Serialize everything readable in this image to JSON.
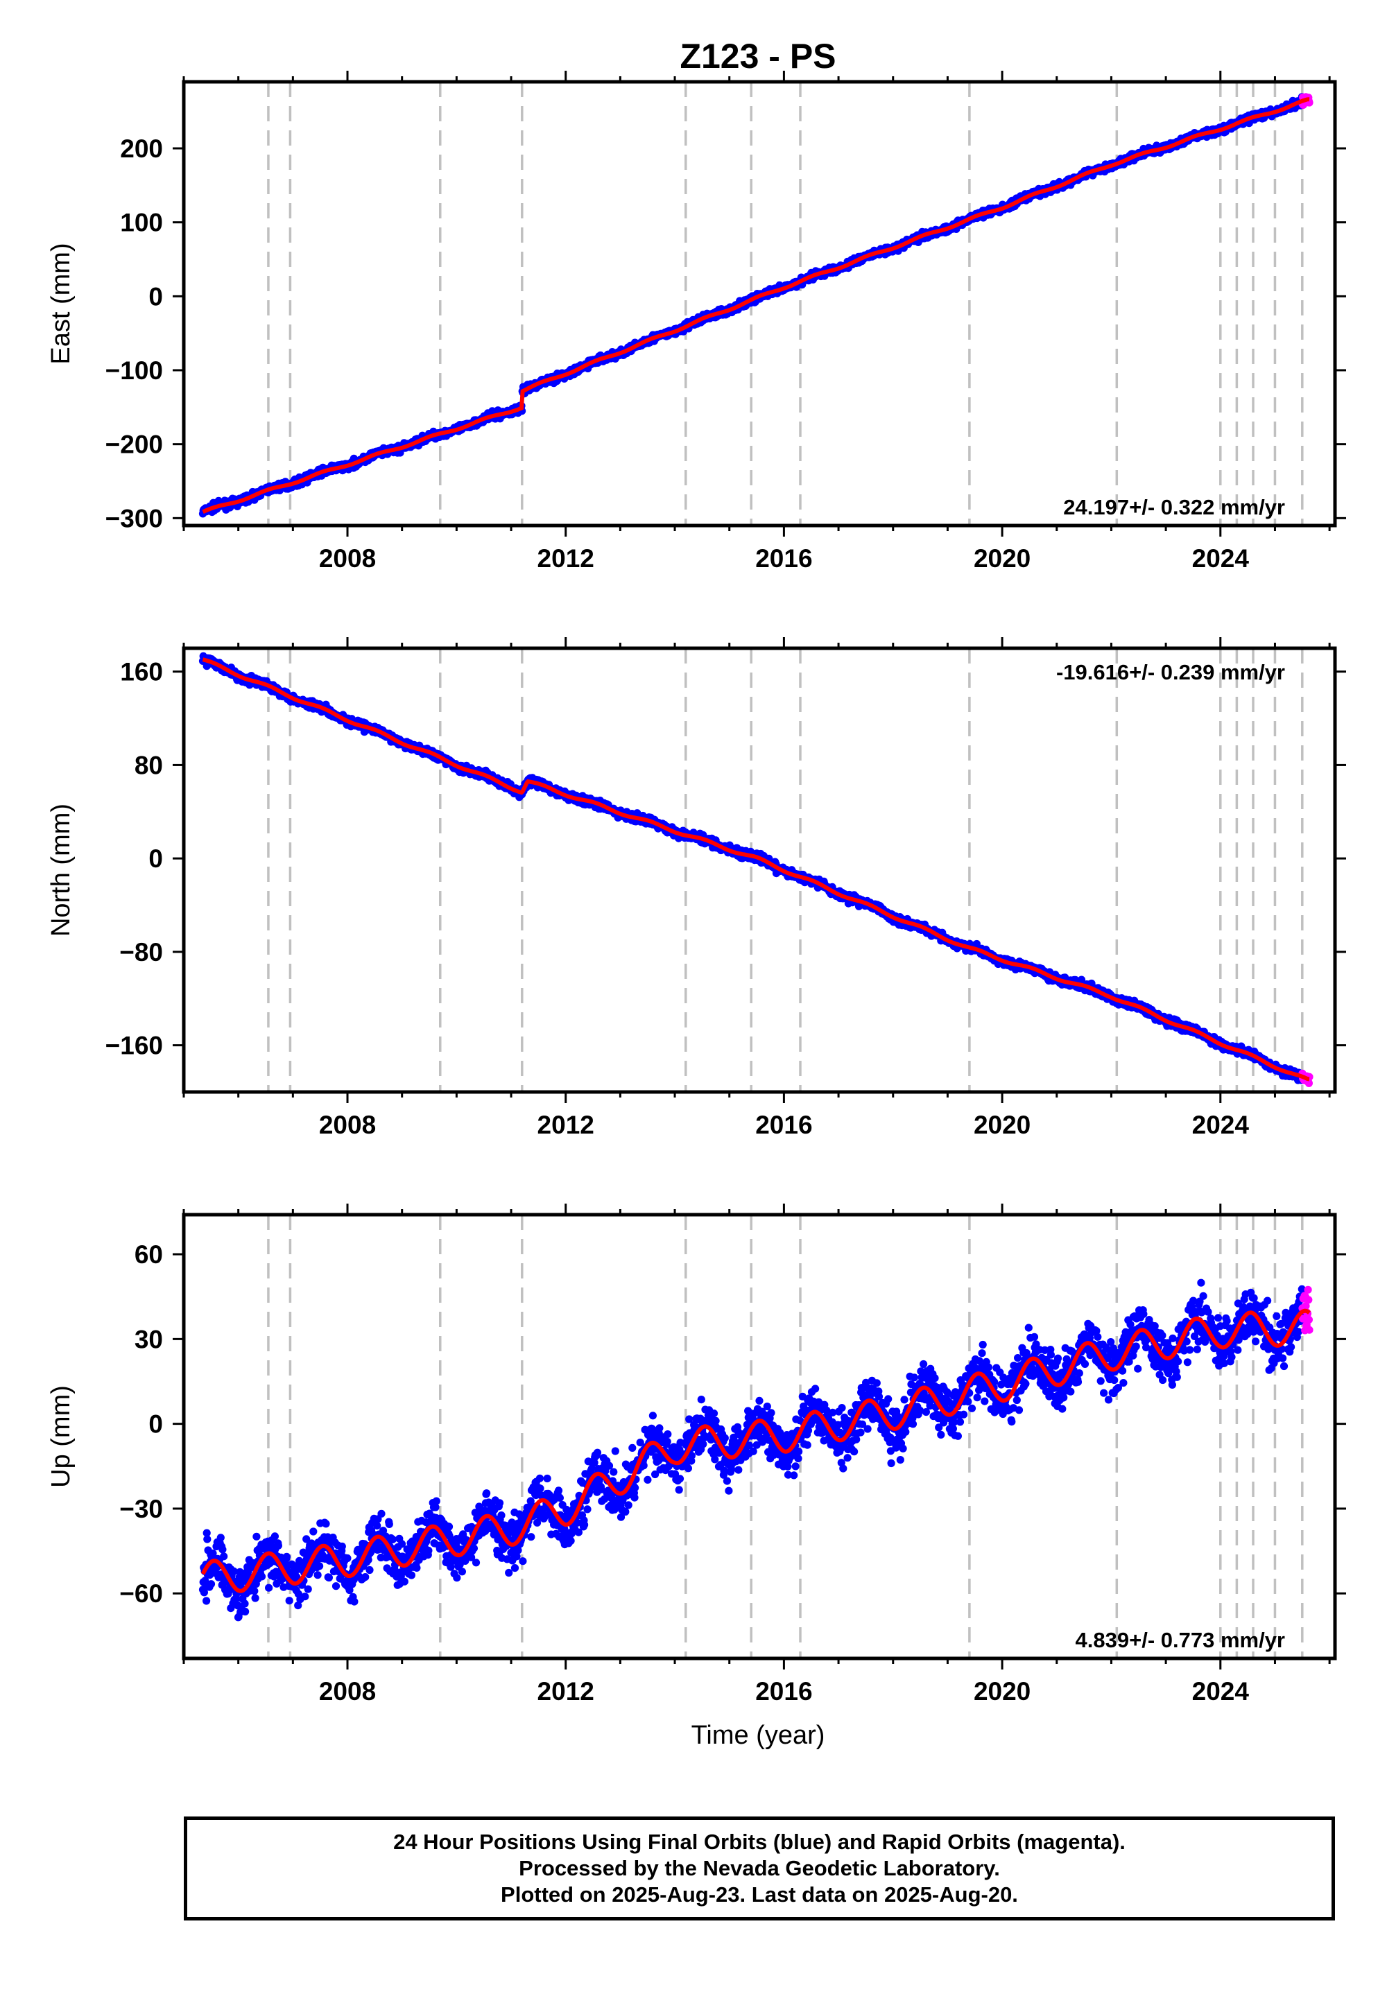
{
  "chart_data": {
    "title": "Z123 - PS",
    "type": "scatter",
    "xlabel": "Time (year)",
    "xlim": [
      2005.0,
      2026.1
    ],
    "x_ticks": [
      2008,
      2012,
      2016,
      2020,
      2024
    ],
    "data_start": 2005.35,
    "data_end": 2025.635,
    "rapid_start": 2025.5,
    "vertical_event_lines": [
      2006.55,
      2006.95,
      2009.7,
      2011.2,
      2014.2,
      2015.4,
      2016.3,
      2019.4,
      2022.1,
      2024.0,
      2024.3,
      2024.6,
      2025.0,
      2025.5
    ],
    "colors": {
      "final_orbits": "#0000ff",
      "rapid_orbits": "#ff00ff",
      "model": "#ff0000",
      "event_lines": "#c0c0c0"
    },
    "panels": [
      {
        "id": "east",
        "ylabel": "East (mm)",
        "ylim": [
          -310,
          290
        ],
        "y_ticks": [
          -300,
          -200,
          -100,
          0,
          100,
          200
        ],
        "y_tick_labels": [
          "−300",
          "−200",
          "−100",
          "0",
          "100",
          "200"
        ],
        "rate_label": "24.197+/- 0.322 mm/yr",
        "rate_position": "bottom-right",
        "trend_points": [
          [
            2005.35,
            -292
          ],
          [
            2011.2,
            -150
          ],
          [
            2011.2,
            -128
          ],
          [
            2016.0,
            12
          ],
          [
            2020.0,
            120
          ],
          [
            2022.0,
            178
          ],
          [
            2025.6,
            265
          ]
        ],
        "seasonal_amplitude": 1.5,
        "scatter": 3.5
      },
      {
        "id": "north",
        "ylabel": "North (mm)",
        "ylim": [
          -200,
          180
        ],
        "y_ticks": [
          -160,
          -80,
          0,
          80,
          160
        ],
        "y_tick_labels": [
          "−160",
          "−80",
          "0",
          "80",
          "160"
        ],
        "rate_label": "-19.616+/- 0.239 mm/yr",
        "rate_position": "top-right",
        "trend_points": [
          [
            2005.35,
            170
          ],
          [
            2011.2,
            57
          ],
          [
            2011.3,
            66
          ],
          [
            2015.5,
            0
          ],
          [
            2019.4,
            -77
          ],
          [
            2022.0,
            -118
          ],
          [
            2025.6,
            -190
          ]
        ],
        "seasonal_amplitude": 1.2,
        "scatter": 2.5
      },
      {
        "id": "up",
        "ylabel": "Up (mm)",
        "ylim": [
          -83,
          74
        ],
        "y_ticks": [
          -60,
          -30,
          0,
          30,
          60
        ],
        "y_tick_labels": [
          "−60",
          "−30",
          "0",
          "30",
          "60"
        ],
        "rate_label": "4.839+/- 0.773 mm/yr",
        "rate_position": "bottom-right",
        "trend_points": [
          [
            2005.35,
            -55
          ],
          [
            2008.0,
            -48
          ],
          [
            2011.0,
            -37
          ],
          [
            2012.0,
            -30
          ],
          [
            2014.0,
            -8
          ],
          [
            2016.0,
            -4
          ],
          [
            2018.0,
            4
          ],
          [
            2020.0,
            14
          ],
          [
            2022.0,
            25
          ],
          [
            2024.0,
            33
          ],
          [
            2025.6,
            34
          ]
        ],
        "seasonal_amplitude": 6,
        "scatter": 6.5
      }
    ]
  },
  "footer": {
    "line1": "24 Hour Positions Using Final Orbits (blue) and Rapid Orbits (magenta).",
    "line2": "Processed by the Nevada Geodetic Laboratory.",
    "line3": "Plotted on 2025-Aug-23. Last data on 2025-Aug-20."
  }
}
